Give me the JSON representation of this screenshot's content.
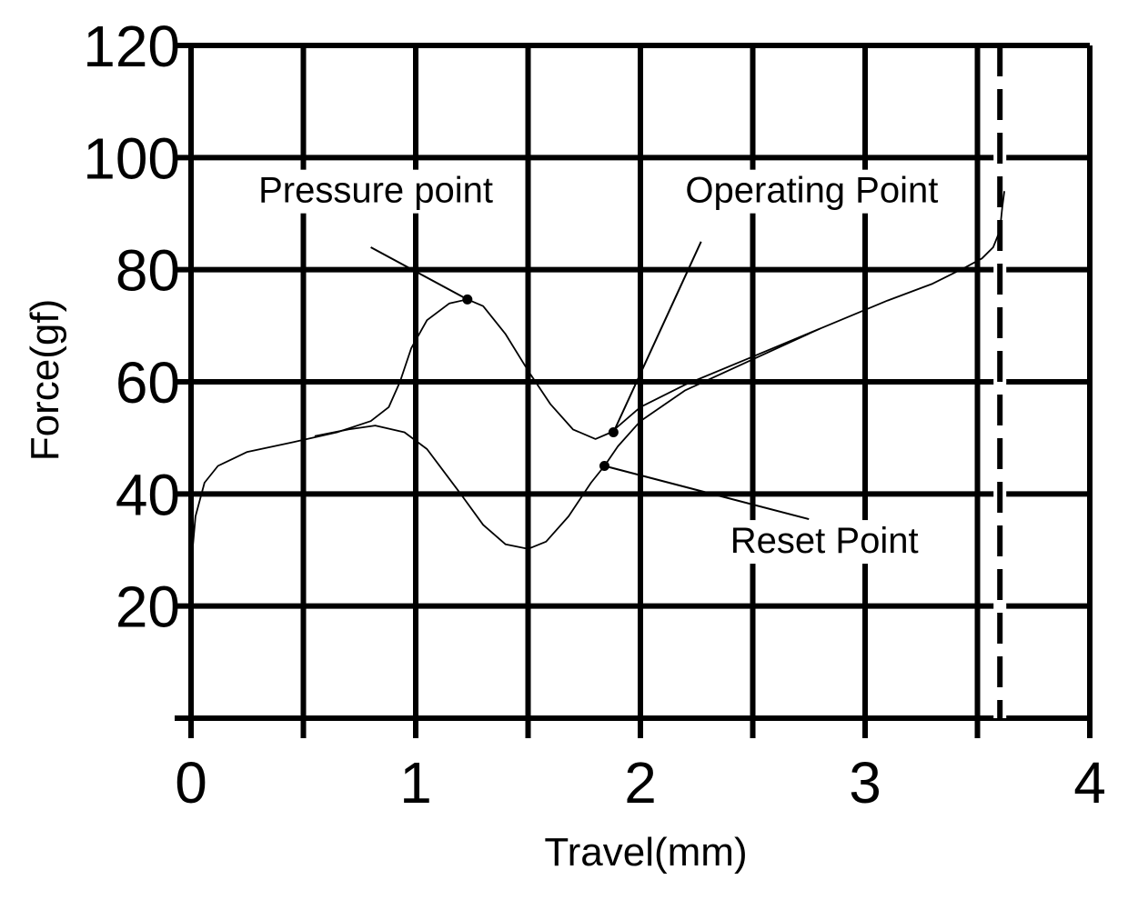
{
  "chart_data": {
    "type": "line",
    "title": "",
    "xlabel": "Travel(mm)",
    "ylabel": "Force(gf)",
    "xlim": [
      0,
      4
    ],
    "ylim": [
      0,
      120
    ],
    "grid": true,
    "x_ticks": [
      0,
      0.5,
      1,
      1.5,
      2,
      2.5,
      3,
      3.5,
      4
    ],
    "x_tick_labels": [
      {
        "value": 0,
        "label": "0"
      },
      {
        "value": 1,
        "label": "1"
      },
      {
        "value": 2,
        "label": "2"
      },
      {
        "value": 3,
        "label": "3"
      },
      {
        "value": 4,
        "label": "4"
      }
    ],
    "y_ticks": [
      0,
      20,
      40,
      60,
      80,
      100,
      120
    ],
    "y_tick_labels": [
      {
        "value": 20,
        "label": "20"
      },
      {
        "value": 40,
        "label": "40"
      },
      {
        "value": 60,
        "label": "60"
      },
      {
        "value": 80,
        "label": "80"
      },
      {
        "value": 100,
        "label": "100"
      },
      {
        "value": 120,
        "label": "120"
      }
    ],
    "vertical_marker": {
      "x": 3.6,
      "style": "dashed"
    },
    "series": [
      {
        "points": [
          [
            0,
            27
          ],
          [
            0.02,
            36
          ],
          [
            0.06,
            42
          ],
          [
            0.12,
            45
          ],
          [
            0.25,
            47.5
          ],
          [
            0.45,
            49.2
          ],
          [
            0.65,
            51
          ],
          [
            0.8,
            53
          ],
          [
            0.88,
            55.5
          ],
          [
            0.93,
            60
          ],
          [
            0.98,
            66
          ],
          [
            1.05,
            71
          ],
          [
            1.15,
            74
          ],
          [
            1.23,
            74.7
          ],
          [
            1.3,
            73.5
          ],
          [
            1.4,
            68.5
          ],
          [
            1.5,
            62
          ],
          [
            1.6,
            56
          ],
          [
            1.7,
            51.5
          ],
          [
            1.8,
            49.8
          ],
          [
            1.87,
            51
          ],
          [
            2.0,
            55.5
          ],
          [
            2.2,
            59.5
          ],
          [
            2.5,
            64.5
          ],
          [
            2.8,
            69.5
          ],
          [
            3.1,
            74.5
          ],
          [
            3.3,
            77.5
          ],
          [
            3.45,
            80.5
          ],
          [
            3.52,
            82
          ],
          [
            3.57,
            84
          ],
          [
            3.6,
            87
          ],
          [
            3.61,
            91
          ],
          [
            3.62,
            94
          ]
        ]
      },
      {
        "points": [
          [
            0.55,
            50.3
          ],
          [
            0.7,
            51.5
          ],
          [
            0.82,
            52.2
          ],
          [
            0.95,
            51
          ],
          [
            1.05,
            48
          ],
          [
            1.2,
            40
          ],
          [
            1.3,
            34.5
          ],
          [
            1.4,
            31
          ],
          [
            1.5,
            30.2
          ],
          [
            1.58,
            31.5
          ],
          [
            1.68,
            36
          ],
          [
            1.78,
            42
          ],
          [
            1.84,
            45
          ],
          [
            1.9,
            48.5
          ],
          [
            2.0,
            53
          ],
          [
            2.2,
            58.5
          ],
          [
            2.5,
            64
          ],
          [
            2.8,
            69.5
          ]
        ]
      }
    ],
    "annotations": [
      {
        "id": "pressure",
        "text": "Pressure point",
        "point": [
          1.23,
          74.7
        ],
        "label_at": [
          0.3,
          92
        ],
        "leader_to": [
          0.8,
          84
        ]
      },
      {
        "id": "operating",
        "text": "Operating Point",
        "point": [
          1.88,
          51
        ],
        "label_at": [
          2.2,
          92
        ],
        "leader_to": [
          2.27,
          85
        ]
      },
      {
        "id": "reset",
        "text": "Reset Point",
        "point": [
          1.84,
          45
        ],
        "label_at": [
          2.4,
          29.5
        ],
        "leader_to": [
          2.75,
          35.5
        ]
      }
    ]
  }
}
